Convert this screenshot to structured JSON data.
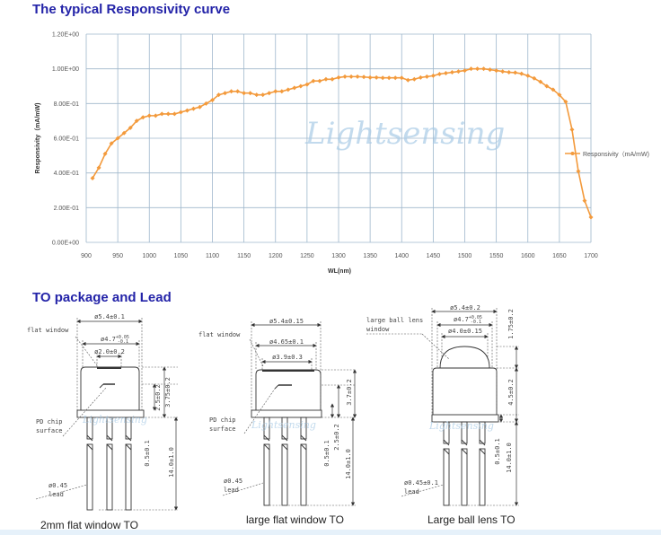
{
  "chart_section_title": "The typical Responsivity curve",
  "package_section_title": "TO package and Lead",
  "watermark": "Lightsensing",
  "chart_data": {
    "type": "line",
    "title": "",
    "xlabel": "WL(nm)",
    "ylabel": "Responsivity（mA/mW)",
    "xlim": [
      900,
      1700
    ],
    "ylim": [
      0,
      1.2
    ],
    "x_ticks": [
      900,
      950,
      1000,
      1050,
      1100,
      1150,
      1200,
      1250,
      1300,
      1350,
      1400,
      1450,
      1500,
      1550,
      1600,
      1650,
      1700
    ],
    "y_ticks": [
      0,
      0.2,
      0.4,
      0.6,
      0.8,
      1.0,
      1.2
    ],
    "y_tick_labels": [
      "0.00E+00",
      "2.00E-01",
      "4.00E-01",
      "6.00E-01",
      "8.00E-01",
      "1.00E+00",
      "1.20E+00"
    ],
    "grid": true,
    "legend_placement": "right",
    "series": [
      {
        "name": "Responsivity（mA/mW)",
        "color": "#f39a3c",
        "x": [
          910,
          920,
          930,
          940,
          950,
          960,
          970,
          980,
          990,
          1000,
          1010,
          1020,
          1030,
          1040,
          1050,
          1060,
          1070,
          1080,
          1090,
          1100,
          1110,
          1120,
          1130,
          1140,
          1150,
          1160,
          1170,
          1180,
          1190,
          1200,
          1210,
          1220,
          1230,
          1240,
          1250,
          1260,
          1270,
          1280,
          1290,
          1300,
          1310,
          1320,
          1330,
          1340,
          1350,
          1360,
          1370,
          1380,
          1390,
          1400,
          1410,
          1420,
          1430,
          1440,
          1450,
          1460,
          1470,
          1480,
          1490,
          1500,
          1510,
          1520,
          1530,
          1540,
          1550,
          1560,
          1570,
          1580,
          1590,
          1600,
          1610,
          1620,
          1630,
          1640,
          1650,
          1660,
          1670,
          1680,
          1690,
          1700
        ],
        "y": [
          0.37,
          0.43,
          0.51,
          0.57,
          0.6,
          0.63,
          0.66,
          0.7,
          0.72,
          0.73,
          0.73,
          0.74,
          0.74,
          0.74,
          0.75,
          0.76,
          0.77,
          0.78,
          0.8,
          0.82,
          0.85,
          0.86,
          0.87,
          0.87,
          0.86,
          0.86,
          0.85,
          0.85,
          0.86,
          0.87,
          0.87,
          0.88,
          0.89,
          0.9,
          0.91,
          0.93,
          0.93,
          0.94,
          0.94,
          0.95,
          0.955,
          0.955,
          0.955,
          0.953,
          0.95,
          0.95,
          0.948,
          0.948,
          0.948,
          0.948,
          0.935,
          0.94,
          0.95,
          0.955,
          0.96,
          0.97,
          0.975,
          0.98,
          0.985,
          0.99,
          1.0,
          1.0,
          1.0,
          0.995,
          0.99,
          0.985,
          0.98,
          0.978,
          0.972,
          0.96,
          0.945,
          0.925,
          0.9,
          0.88,
          0.85,
          0.81,
          0.65,
          0.41,
          0.24,
          0.145
        ]
      }
    ]
  },
  "packages": [
    {
      "caption": "2mm flat window TO",
      "window_label": "flat window",
      "chip_label_1": "PD chip",
      "chip_label_2": "surface",
      "lead_label_1": "ø0.45",
      "lead_label_2": "lead",
      "dim_outer": "ø5.4±0.1",
      "dim_cap": "ø4.7",
      "dim_cap_tol_plus": "+0.05",
      "dim_cap_tol_minus": "-0.1",
      "dim_window": "ø2.0±0.2",
      "dim_chip_height": "2.5±0.2",
      "dim_cap_height": "3.75±0.2",
      "dim_flange": "0.5±0.1",
      "dim_lead_length": "14.0±1.0"
    },
    {
      "caption": "large flat window TO",
      "window_label": "flat window",
      "chip_label_1": "PD chip",
      "chip_label_2": "surface",
      "lead_label_1": "ø0.45",
      "lead_label_2": "lead",
      "dim_outer": "ø5.4±0.15",
      "dim_cap": "ø4.65±0.1",
      "dim_window": "ø3.9±0.3",
      "dim_cap_height": "3.7±0.2",
      "dim_flange": "0.5±0.1",
      "dim_chip_height": "2.5±0.2",
      "dim_lead_length": "14.0±1.0"
    },
    {
      "caption": "Large ball lens TO",
      "window_label_1": "large ball lens",
      "window_label_2": "window",
      "lead_label_1": "ø0.45±0.1",
      "lead_label_2": "lead",
      "dim_outer": "ø5.4±0.2",
      "dim_cap": "ø4.7",
      "dim_cap_tol_plus": "+0.05",
      "dim_cap_tol_minus": "-0.1",
      "dim_window": "ø4.0±0.15",
      "dim_lens_height": "1.75±0.2",
      "dim_cap_height": "4.5±0.2",
      "dim_flange": "0.5±0.1",
      "dim_lead_length": "14.0±1.0"
    }
  ]
}
